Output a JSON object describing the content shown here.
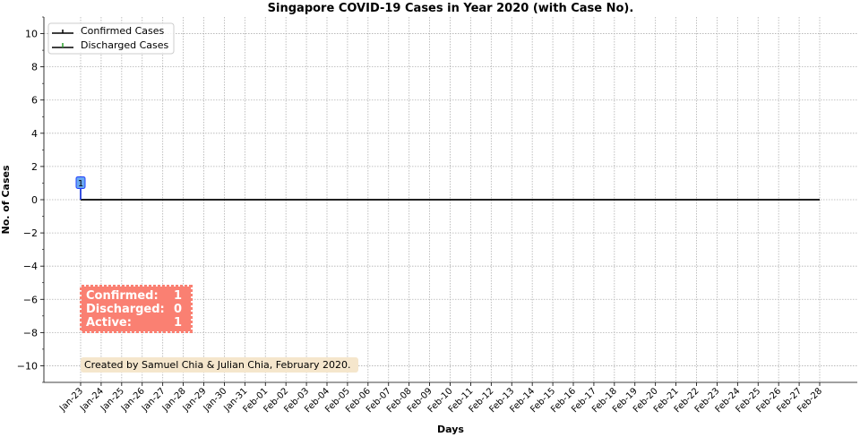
{
  "chart_data": {
    "type": "line",
    "title": "Singapore COVID-19 Cases in Year 2020 (with Case No).",
    "xlabel": "Days",
    "ylabel": "No. of Cases",
    "ylim": [
      -11,
      11
    ],
    "yticks": [
      -10,
      -8,
      -6,
      -4,
      -2,
      0,
      2,
      4,
      6,
      8,
      10
    ],
    "ytick_labels": [
      "−10",
      "−8",
      "−6",
      "−4",
      "−2",
      "0",
      "2",
      "4",
      "6",
      "8",
      "10"
    ],
    "categories": [
      "Jan-23",
      "Jan-24",
      "Jan-25",
      "Jan-26",
      "Jan-27",
      "Jan-28",
      "Jan-29",
      "Jan-30",
      "Jan-31",
      "Feb-01",
      "Feb-02",
      "Feb-03",
      "Feb-04",
      "Feb-05",
      "Feb-06",
      "Feb-07",
      "Feb-08",
      "Feb-09",
      "Feb-10",
      "Feb-11",
      "Feb-12",
      "Feb-13",
      "Feb-14",
      "Feb-15",
      "Feb-16",
      "Feb-17",
      "Feb-18",
      "Feb-19",
      "Feb-20",
      "Feb-21",
      "Feb-22",
      "Feb-23",
      "Feb-24",
      "Feb-25",
      "Feb-26",
      "Feb-27",
      "Feb-28"
    ],
    "baseline": 0,
    "series": [
      {
        "name": "Confirmed Cases",
        "color": "#000000",
        "stems": [
          {
            "x": "Jan-23",
            "y": 1
          }
        ]
      },
      {
        "name": "Discharged Cases",
        "color": "#2ca02c",
        "stems": []
      }
    ],
    "case_markers": [
      {
        "x": "Jan-23",
        "y": 1,
        "label": "1",
        "fill": "#6aa8f0",
        "edge": "#1f3fff"
      }
    ],
    "grid": true,
    "legend_position": "top-left",
    "summary_box": {
      "rows": [
        {
          "label": "Confirmed:",
          "value": "1"
        },
        {
          "label": "Discharged:",
          "value": "0"
        },
        {
          "label": "Active:",
          "value": "1"
        }
      ],
      "fill": "#fa8072"
    },
    "credit": "Created by Samuel Chia & Julian Chia, February 2020.",
    "credit_fill": "#f5e6cc"
  }
}
